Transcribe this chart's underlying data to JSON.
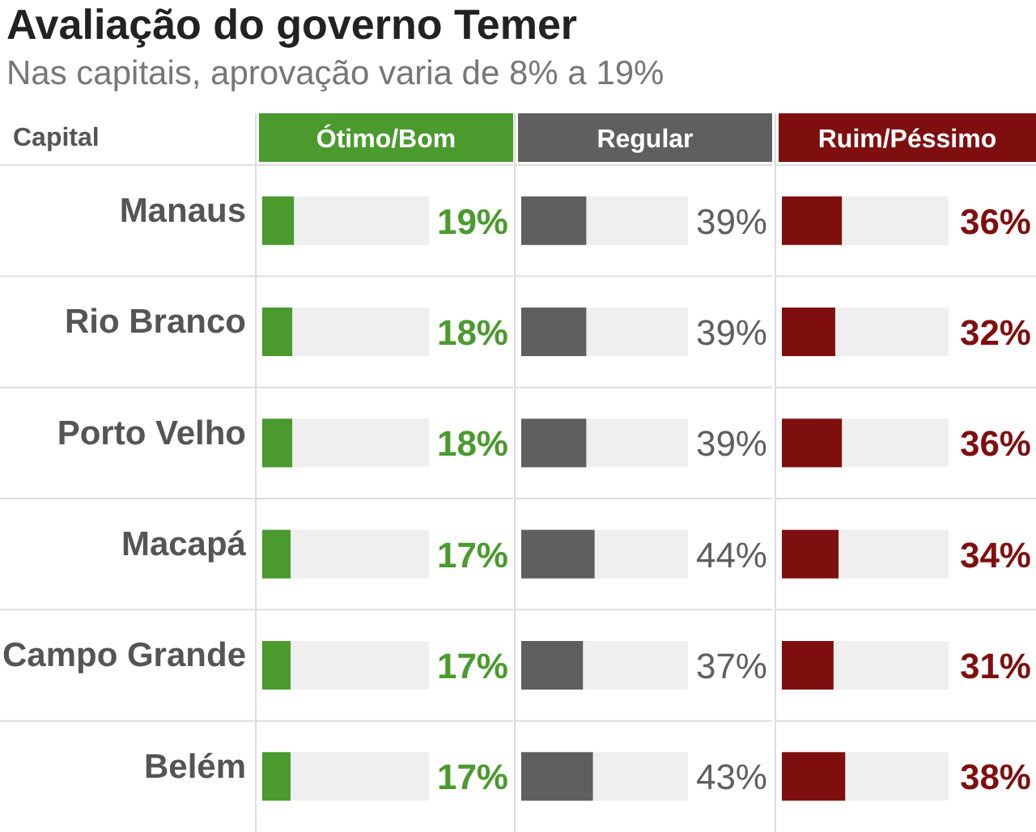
{
  "chart_data": [
    {
      "type": "other",
      "title": "Avaliação do governo Temer",
      "subtitle": "Nas capitais, aprovação varia de 8% a 19%"
    },
    {
      "type": "bar",
      "orientation": "horizontal",
      "title": "Ótimo/Bom",
      "ylabel": "Capital",
      "tick_labels": "y",
      "categories": [
        "Manaus",
        "Rio Branco",
        "Porto Velho",
        "Macapá",
        "Campo Grande",
        "Belém"
      ],
      "xlim": [
        0,
        100
      ],
      "color": "#4a9a2e",
      "values": [
        19,
        18,
        18,
        17,
        17,
        17
      ],
      "value_labels": [
        "19%",
        "18%",
        "18%",
        "17%",
        "17%",
        "17%"
      ]
    },
    {
      "type": "bar",
      "orientation": "horizontal",
      "title": "Regular",
      "tick_labels": false,
      "categories": [
        null,
        null,
        null,
        null,
        null,
        null
      ],
      "xlim": [
        0,
        100
      ],
      "color": "#5f5f5f",
      "values": [
        39,
        39,
        39,
        44,
        37,
        43
      ],
      "value_labels": [
        "39%",
        "39%",
        "39%",
        "44%",
        "37%",
        "43%"
      ]
    },
    {
      "type": "bar",
      "orientation": "horizontal",
      "title": "Ruim/Péssimo",
      "tick_labels": false,
      "categories": [
        null,
        null,
        null,
        null,
        null,
        null
      ],
      "xlim": [
        0,
        100
      ],
      "color": "#7f0f0f",
      "values": [
        36,
        32,
        36,
        34,
        31,
        38
      ],
      "value_labels": [
        "36%",
        "32%",
        "36%",
        "34%",
        "31%",
        "38%"
      ]
    }
  ]
}
